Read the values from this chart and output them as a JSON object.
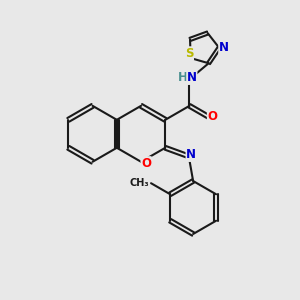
{
  "bg_color": "#e8e8e8",
  "bond_color": "#1a1a1a",
  "bond_width": 1.5,
  "atom_colors": {
    "O": "#ff0000",
    "N": "#0000cd",
    "S": "#b8b800",
    "H": "#4a9090",
    "C": "#1a1a1a"
  },
  "font_size": 8.5,
  "fig_size": [
    3.0,
    3.0
  ],
  "dpi": 100,
  "xlim": [
    0,
    10
  ],
  "ylim": [
    0,
    10
  ]
}
